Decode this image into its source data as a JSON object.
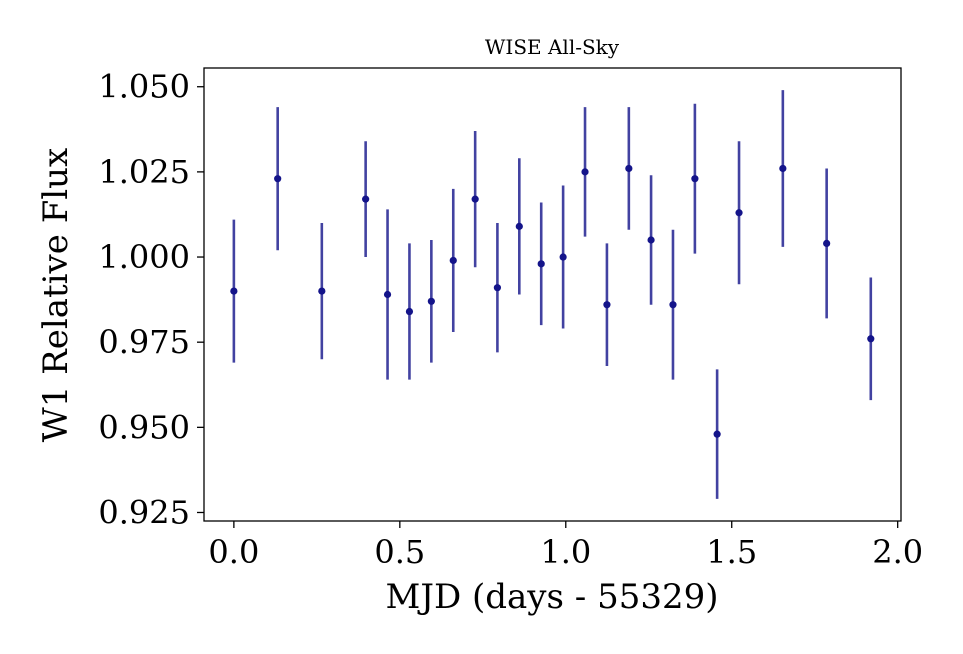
{
  "chart_data": {
    "type": "scatter",
    "title": "WISE All-Sky",
    "xlabel": "MJD (days - 55329)",
    "ylabel": "W1 Relative Flux",
    "xlim": [
      -0.09,
      2.01
    ],
    "ylim": [
      0.9225,
      1.0555
    ],
    "xticks": [
      "0.0",
      "0.5",
      "1.0",
      "1.5",
      "2.0"
    ],
    "yticks": [
      "0.925",
      "0.950",
      "0.975",
      "1.000",
      "1.025",
      "1.050"
    ],
    "grid": false,
    "marker_color": "#14148a",
    "errorbar_color": "#14148a",
    "series": [
      {
        "x": [
          0.0,
          0.132,
          0.265,
          0.397,
          0.463,
          0.529,
          0.595,
          0.661,
          0.727,
          0.794,
          0.86,
          0.926,
          0.992,
          1.058,
          1.124,
          1.19,
          1.257,
          1.323,
          1.456,
          1.389,
          1.522,
          1.654,
          1.786,
          1.919
        ],
        "y": [
          0.99,
          1.023,
          0.99,
          1.017,
          0.989,
          0.984,
          0.987,
          0.999,
          1.017,
          0.991,
          1.009,
          0.998,
          1.0,
          1.025,
          0.986,
          1.026,
          1.005,
          0.986,
          0.948,
          1.023,
          1.013,
          1.026,
          1.004,
          0.976
        ],
        "err": [
          0.021,
          0.021,
          0.02,
          0.017,
          0.025,
          0.02,
          0.018,
          0.021,
          0.02,
          0.019,
          0.02,
          0.018,
          0.021,
          0.019,
          0.018,
          0.018,
          0.019,
          0.022,
          0.019,
          0.022,
          0.021,
          0.023,
          0.022,
          0.018
        ]
      }
    ]
  }
}
